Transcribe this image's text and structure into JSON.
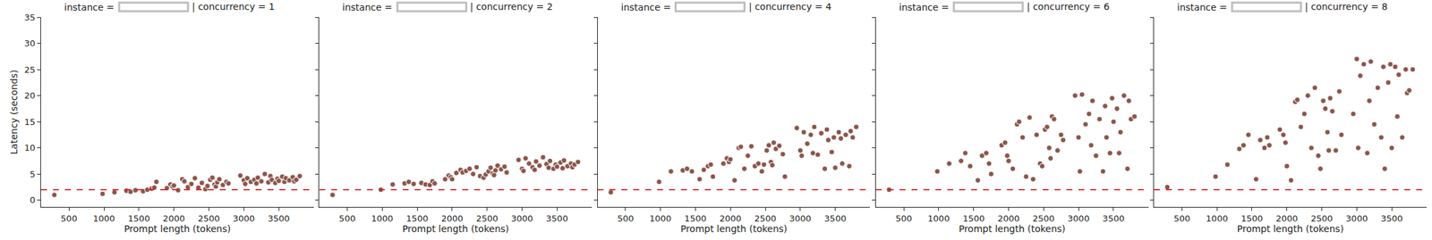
{
  "chart_data": [
    {
      "type": "scatter",
      "title_parts": [
        "instance =",
        "| concurrency = 1"
      ],
      "x_label": "Prompt length (tokens)",
      "y_label": "Latency (seconds)",
      "x": [
        290,
        980,
        1150,
        1320,
        1380,
        1450,
        1560,
        1620,
        1680,
        1720,
        1750,
        1900,
        1950,
        1980,
        2000,
        2060,
        2120,
        2150,
        2200,
        2250,
        2300,
        2350,
        2400,
        2450,
        2480,
        2520,
        2550,
        2580,
        2600,
        2620,
        2650,
        2700,
        2750,
        2780,
        2950,
        3000,
        3020,
        3050,
        3100,
        3150,
        3180,
        3200,
        3250,
        3300,
        3350,
        3380,
        3400,
        3450,
        3480,
        3500,
        3550,
        3580,
        3600,
        3650,
        3700,
        3720,
        3750,
        3800
      ],
      "values": [
        1.0,
        1.2,
        1.5,
        1.8,
        1.6,
        1.9,
        1.7,
        2.0,
        2.2,
        2.4,
        3.5,
        2.3,
        3.0,
        2.6,
        2.8,
        1.9,
        4.0,
        3.6,
        2.5,
        3.1,
        4.2,
        2.4,
        3.3,
        2.1,
        2.7,
        3.9,
        4.3,
        3.0,
        2.6,
        3.4,
        4.0,
        2.9,
        3.5,
        3.2,
        4.7,
        3.8,
        3.1,
        4.2,
        3.5,
        3.9,
        3.2,
        4.3,
        3.6,
        5.0,
        3.4,
        4.6,
        3.9,
        3.3,
        4.1,
        3.7,
        4.5,
        3.5,
        4.2,
        3.8,
        4.4,
        3.6,
        3.9,
        4.6
      ],
      "color": "#8c564b",
      "marker": "circle",
      "threshold": 2,
      "threshold_color": "#e41a1c",
      "line_style": "dashed",
      "xlim": [
        100,
        4000
      ],
      "ylim": [
        -1.3,
        35
      ],
      "xticks": [
        500,
        1000,
        1500,
        2000,
        2500,
        3000,
        3500
      ],
      "yticks": [
        0,
        5,
        10,
        15,
        20,
        25,
        30,
        35
      ],
      "grid": false
    },
    {
      "type": "scatter",
      "title_parts": [
        "instance =",
        "| concurrency = 2"
      ],
      "x_label": "Prompt length (tokens)",
      "tick_labels": "x",
      "x": [
        290,
        980,
        1150,
        1320,
        1380,
        1450,
        1560,
        1620,
        1680,
        1720,
        1750,
        1900,
        1950,
        1980,
        2000,
        2060,
        2120,
        2150,
        2200,
        2250,
        2300,
        2350,
        2400,
        2450,
        2480,
        2520,
        2550,
        2580,
        2600,
        2620,
        2650,
        2700,
        2750,
        2780,
        2950,
        3000,
        3020,
        3050,
        3100,
        3150,
        3180,
        3200,
        3250,
        3300,
        3350,
        3380,
        3400,
        3450,
        3480,
        3500,
        3550,
        3580,
        3600,
        3650,
        3700,
        3720,
        3750,
        3800
      ],
      "values": [
        1.0,
        2.0,
        3.0,
        3.2,
        3.5,
        3.1,
        3.3,
        3.0,
        2.9,
        3.6,
        3.2,
        4.0,
        4.7,
        4.4,
        4.0,
        5.2,
        5.8,
        5.3,
        5.6,
        6.0,
        5.0,
        6.3,
        4.6,
        4.3,
        4.9,
        5.5,
        6.2,
        5.1,
        4.8,
        5.7,
        6.6,
        5.9,
        6.4,
        5.3,
        7.7,
        6.0,
        5.6,
        8.0,
        7.0,
        6.3,
        5.8,
        7.4,
        6.6,
        8.2,
        6.9,
        6.2,
        7.5,
        6.0,
        6.8,
        6.4,
        7.2,
        6.1,
        7.6,
        6.5,
        7.0,
        6.3,
        6.8,
        7.3
      ],
      "color": "#8c564b",
      "marker": "circle",
      "threshold": 2,
      "threshold_color": "#e41a1c",
      "line_style": "dashed",
      "xlim": [
        100,
        4000
      ],
      "ylim": [
        -1.3,
        35
      ],
      "xticks": [
        500,
        1000,
        1500,
        2000,
        2500,
        3000,
        3500
      ],
      "yticks": [
        0,
        5,
        10,
        15,
        20,
        25,
        30,
        35
      ],
      "grid": false
    },
    {
      "type": "scatter",
      "title_parts": [
        "instance =",
        "| concurrency = 4"
      ],
      "x_label": "Prompt length (tokens)",
      "tick_labels": "x",
      "x": [
        290,
        980,
        1150,
        1320,
        1380,
        1450,
        1560,
        1620,
        1680,
        1720,
        1750,
        1900,
        1950,
        1980,
        2000,
        2060,
        2120,
        2150,
        2200,
        2250,
        2300,
        2350,
        2400,
        2450,
        2480,
        2520,
        2550,
        2580,
        2600,
        2620,
        2650,
        2700,
        2750,
        2780,
        2950,
        3000,
        3020,
        3050,
        3100,
        3150,
        3180,
        3200,
        3250,
        3300,
        3350,
        3380,
        3400,
        3450,
        3480,
        3500,
        3550,
        3580,
        3600,
        3650,
        3700,
        3720,
        3750,
        3800
      ],
      "values": [
        1.5,
        3.5,
        5.5,
        5.7,
        6.0,
        5.5,
        4.0,
        5.8,
        6.5,
        6.8,
        4.5,
        7.0,
        8.0,
        7.3,
        7.8,
        3.8,
        10.0,
        10.2,
        6.0,
        8.5,
        10.3,
        6.5,
        7.0,
        5.5,
        6.8,
        9.5,
        10.5,
        7.3,
        6.7,
        11.0,
        9.8,
        10.4,
        8.8,
        4.5,
        13.8,
        9.5,
        8.5,
        13.0,
        10.8,
        12.5,
        9.0,
        14.0,
        8.7,
        12.8,
        6.0,
        13.5,
        11.5,
        9.2,
        12.0,
        6.2,
        13.0,
        11.8,
        7.0,
        12.5,
        6.5,
        13.2,
        12.0,
        14.0
      ],
      "color": "#8c564b",
      "marker": "circle",
      "threshold": 2,
      "threshold_color": "#e41a1c",
      "line_style": "dashed",
      "xlim": [
        100,
        4000
      ],
      "ylim": [
        -1.3,
        35
      ],
      "xticks": [
        500,
        1000,
        1500,
        2000,
        2500,
        3000,
        3500
      ],
      "yticks": [
        0,
        5,
        10,
        15,
        20,
        25,
        30,
        35
      ],
      "grid": false
    },
    {
      "type": "scatter",
      "title_parts": [
        "instance =",
        "| concurrency = 6"
      ],
      "x_label": "Prompt length (tokens)",
      "tick_labels": "x",
      "x": [
        290,
        980,
        1150,
        1320,
        1380,
        1450,
        1560,
        1620,
        1680,
        1720,
        1750,
        1900,
        1950,
        1980,
        2000,
        2060,
        2120,
        2150,
        2200,
        2250,
        2300,
        2350,
        2400,
        2450,
        2480,
        2520,
        2550,
        2580,
        2600,
        2620,
        2650,
        2700,
        2750,
        2780,
        2950,
        3000,
        3020,
        3050,
        3100,
        3150,
        3180,
        3200,
        3250,
        3300,
        3350,
        3380,
        3400,
        3450,
        3480,
        3500,
        3550,
        3580,
        3600,
        3650,
        3700,
        3720,
        3750,
        3800
      ],
      "values": [
        2.0,
        5.5,
        7.0,
        7.5,
        9.0,
        6.5,
        3.8,
        8.5,
        9.0,
        7.0,
        5.0,
        10.5,
        11.0,
        8.5,
        7.5,
        6.0,
        14.5,
        15.0,
        12.0,
        4.5,
        15.8,
        4.0,
        12.5,
        7.0,
        6.5,
        13.5,
        14.0,
        10.0,
        8.0,
        16.0,
        15.5,
        9.5,
        12.5,
        11.5,
        20.0,
        12.0,
        5.5,
        20.2,
        14.5,
        16.5,
        10.5,
        19.0,
        8.5,
        15.5,
        5.5,
        18.0,
        12.0,
        9.0,
        19.5,
        15.0,
        17.5,
        9.0,
        13.0,
        20.0,
        6.0,
        19.0,
        15.5,
        16.0
      ],
      "color": "#8c564b",
      "marker": "circle",
      "threshold": 2,
      "threshold_color": "#e41a1c",
      "line_style": "dashed",
      "xlim": [
        100,
        4000
      ],
      "ylim": [
        -1.3,
        35
      ],
      "xticks": [
        500,
        1000,
        1500,
        2000,
        2500,
        3000,
        3500
      ],
      "yticks": [
        0,
        5,
        10,
        15,
        20,
        25,
        30,
        35
      ],
      "grid": false
    },
    {
      "type": "scatter",
      "title_parts": [
        "instance =",
        "| concurrency = 8"
      ],
      "x_label": "Prompt length (tokens)",
      "tick_labels": "x",
      "x": [
        290,
        980,
        1150,
        1320,
        1380,
        1450,
        1560,
        1620,
        1680,
        1720,
        1750,
        1900,
        1950,
        1980,
        2000,
        2060,
        2120,
        2150,
        2200,
        2250,
        2300,
        2350,
        2400,
        2450,
        2480,
        2520,
        2550,
        2580,
        2600,
        2620,
        2650,
        2700,
        2750,
        2780,
        2950,
        3000,
        3020,
        3050,
        3100,
        3150,
        3180,
        3200,
        3250,
        3300,
        3350,
        3380,
        3400,
        3450,
        3480,
        3500,
        3550,
        3580,
        3600,
        3650,
        3700,
        3720,
        3750,
        3800
      ],
      "values": [
        2.5,
        4.5,
        6.8,
        9.8,
        10.5,
        12.5,
        4.0,
        11.5,
        10.0,
        12.0,
        10.5,
        13.5,
        12.5,
        11.0,
        6.5,
        3.8,
        18.8,
        19.2,
        14.0,
        16.5,
        20.0,
        10.0,
        21.5,
        8.5,
        6.0,
        19.0,
        17.5,
        13.0,
        9.5,
        19.5,
        17.0,
        9.5,
        20.8,
        12.5,
        16.5,
        27.0,
        10.0,
        23.8,
        26.0,
        9.0,
        19.0,
        26.5,
        14.5,
        21.5,
        12.0,
        25.5,
        6.0,
        22.5,
        26.0,
        10.0,
        25.5,
        16.0,
        24.0,
        12.0,
        25.0,
        20.5,
        21.0,
        25.0
      ],
      "color": "#8c564b",
      "marker": "circle",
      "threshold": 2,
      "threshold_color": "#e41a1c",
      "line_style": "dashed",
      "xlim": [
        100,
        4000
      ],
      "ylim": [
        -1.3,
        35
      ],
      "xticks": [
        500,
        1000,
        1500,
        2000,
        2500,
        3000,
        3500
      ],
      "yticks": [
        0,
        5,
        10,
        15,
        20,
        25,
        30,
        35
      ],
      "grid": false
    }
  ]
}
